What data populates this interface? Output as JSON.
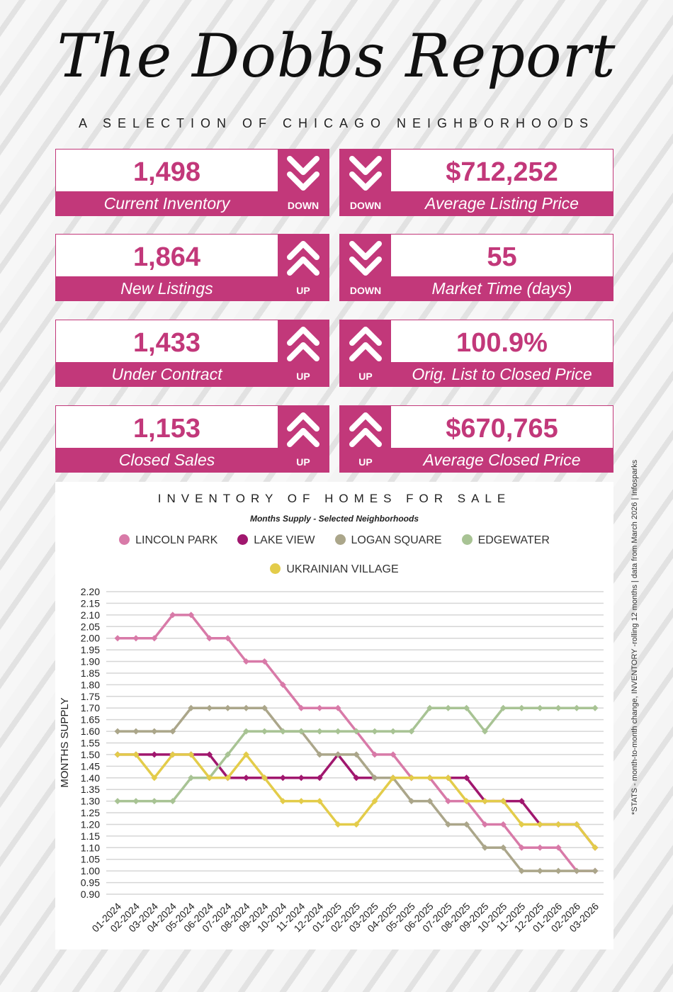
{
  "header": {
    "title": "The Dobbs Report",
    "subtitle": "A SELECTION OF CHICAGO NEIGHBORHOODS"
  },
  "colors": {
    "accent": "#c2387a"
  },
  "stats": [
    {
      "value": "1,498",
      "label": "Current Inventory",
      "direction": "DOWN",
      "icon": "double-chevron-down-icon"
    },
    {
      "value": "$712,252",
      "label": "Average Listing Price",
      "direction": "DOWN",
      "icon": "double-chevron-down-icon"
    },
    {
      "value": "1,864",
      "label": "New Listings",
      "direction": "UP",
      "icon": "double-chevron-up-icon"
    },
    {
      "value": "55",
      "label": "Market Time (days)",
      "direction": "DOWN",
      "icon": "double-chevron-down-icon"
    },
    {
      "value": "1,433",
      "label": "Under Contract",
      "direction": "UP",
      "icon": "double-chevron-up-icon"
    },
    {
      "value": "100.9%",
      "label": "Orig. List to Closed Price",
      "direction": "UP",
      "icon": "double-chevron-up-icon"
    },
    {
      "value": "1,153",
      "label": "Closed Sales",
      "direction": "UP",
      "icon": "double-chevron-up-icon"
    },
    {
      "value": "$670,765",
      "label": "Average Closed Price",
      "direction": "UP",
      "icon": "double-chevron-up-icon"
    }
  ],
  "footnote": "*STATS - month-to-month change, INVENTORY -rolling 12 months | data from March  2026 | Infosparks",
  "chart_data": {
    "type": "line",
    "title": "INVENTORY OF HOMES FOR SALE",
    "subtitle": "Months Supply - Selected Neighborhoods",
    "ylabel": "MONTHS SUPPLY",
    "xlabel": "",
    "ylim": [
      0.9,
      2.2
    ],
    "ytick_step": 0.05,
    "grid": true,
    "legend_position": "top",
    "x": [
      "01-2024",
      "02-2024",
      "03-2024",
      "04-2024",
      "05-2024",
      "06-2024",
      "07-2024",
      "08-2024",
      "09-2024",
      "10-2024",
      "11-2024",
      "12-2024",
      "01-2025",
      "02-2025",
      "03-2025",
      "04-2025",
      "05-2025",
      "06-2025",
      "07-2025",
      "08-2025",
      "09-2025",
      "10-2025",
      "11-2025",
      "12-2025",
      "01-2026",
      "02-2026",
      "03-2026"
    ],
    "series": [
      {
        "name": "LINCOLN PARK",
        "color": "#d87aa8",
        "values": [
          2.0,
          2.0,
          2.0,
          2.1,
          2.1,
          2.0,
          2.0,
          1.9,
          1.9,
          1.8,
          1.7,
          1.7,
          1.7,
          1.6,
          1.5,
          1.5,
          1.4,
          1.4,
          1.3,
          1.3,
          1.2,
          1.2,
          1.1,
          1.1,
          1.1,
          1.0,
          1.0
        ]
      },
      {
        "name": "LAKE VIEW",
        "color": "#a0176e",
        "values": [
          1.5,
          1.5,
          1.5,
          1.5,
          1.5,
          1.5,
          1.4,
          1.4,
          1.4,
          1.4,
          1.4,
          1.4,
          1.5,
          1.4,
          1.4,
          1.4,
          1.4,
          1.4,
          1.4,
          1.4,
          1.3,
          1.3,
          1.3,
          1.2,
          1.2,
          1.2,
          1.1
        ]
      },
      {
        "name": "LOGAN SQUARE",
        "color": "#aba68a",
        "values": [
          1.6,
          1.6,
          1.6,
          1.6,
          1.7,
          1.7,
          1.7,
          1.7,
          1.7,
          1.6,
          1.6,
          1.5,
          1.5,
          1.5,
          1.4,
          1.4,
          1.3,
          1.3,
          1.2,
          1.2,
          1.1,
          1.1,
          1.0,
          1.0,
          1.0,
          1.0,
          1.0
        ]
      },
      {
        "name": "EDGEWATER",
        "color": "#a8c394",
        "values": [
          1.3,
          1.3,
          1.3,
          1.3,
          1.4,
          1.4,
          1.5,
          1.6,
          1.6,
          1.6,
          1.6,
          1.6,
          1.6,
          1.6,
          1.6,
          1.6,
          1.6,
          1.7,
          1.7,
          1.7,
          1.6,
          1.7,
          1.7,
          1.7,
          1.7,
          1.7,
          1.7
        ]
      },
      {
        "name": "UKRAINIAN VILLAGE",
        "color": "#e3cc4a",
        "values": [
          1.5,
          1.5,
          1.4,
          1.5,
          1.5,
          1.4,
          1.4,
          1.5,
          1.4,
          1.3,
          1.3,
          1.3,
          1.2,
          1.2,
          1.3,
          1.4,
          1.4,
          1.4,
          1.4,
          1.3,
          1.3,
          1.3,
          1.2,
          1.2,
          1.2,
          1.2,
          1.1
        ]
      }
    ]
  }
}
